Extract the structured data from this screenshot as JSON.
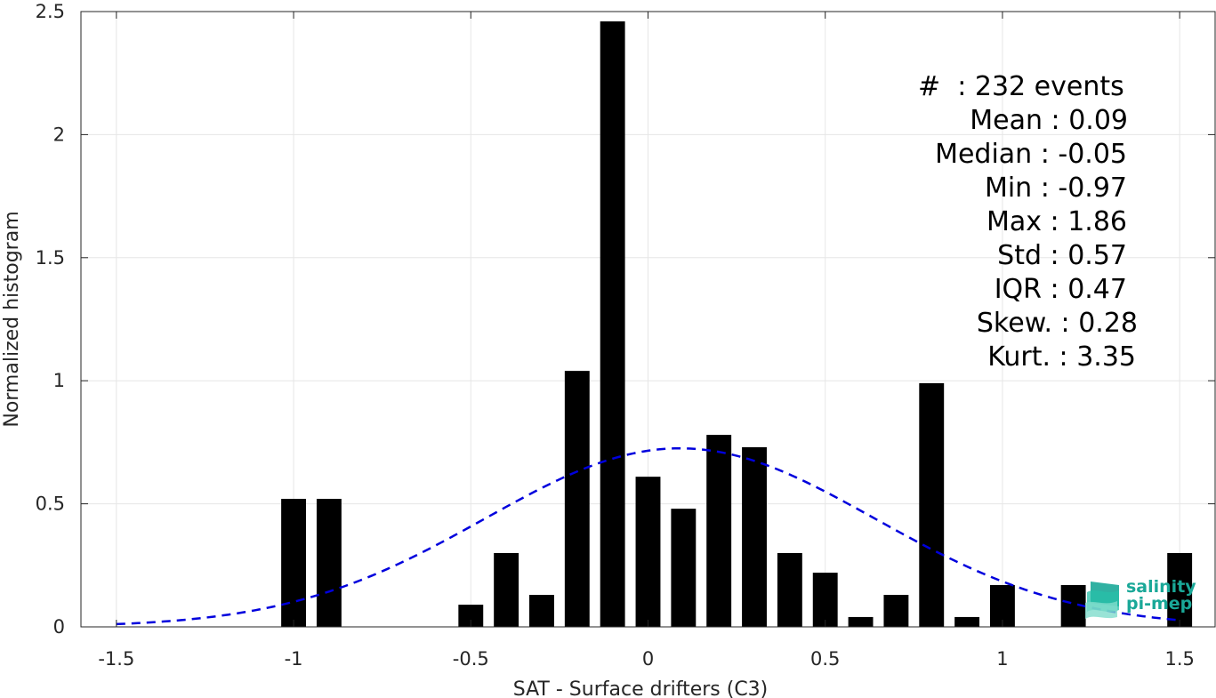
{
  "chart_data": {
    "type": "bar",
    "title": "",
    "xlabel": "SAT - Surface drifters (C3)",
    "ylabel": "Normalized histogram",
    "xlim": [
      -1.6,
      1.6
    ],
    "ylim": [
      0,
      2.5
    ],
    "xticks": [
      -1.5,
      -1,
      -0.5,
      0,
      0.5,
      1,
      1.5
    ],
    "xtick_labels": [
      "-1.5",
      "-1",
      "-0.5",
      "0",
      "0.5",
      "1",
      "1.5"
    ],
    "yticks": [
      0,
      0.5,
      1,
      1.5,
      2,
      2.5
    ],
    "ytick_labels": [
      "0",
      "0.5",
      "1",
      "1.5",
      "2",
      "2.5"
    ],
    "grid": true,
    "bar_width": 0.07,
    "bar_color": "#000000",
    "bars": [
      {
        "x": -1.0,
        "y": 0.52
      },
      {
        "x": -0.9,
        "y": 0.52
      },
      {
        "x": -0.5,
        "y": 0.09
      },
      {
        "x": -0.4,
        "y": 0.3
      },
      {
        "x": -0.3,
        "y": 0.13
      },
      {
        "x": -0.2,
        "y": 1.04
      },
      {
        "x": -0.1,
        "y": 2.46
      },
      {
        "x": 0.0,
        "y": 0.61
      },
      {
        "x": 0.1,
        "y": 0.48
      },
      {
        "x": 0.2,
        "y": 0.78
      },
      {
        "x": 0.3,
        "y": 0.73
      },
      {
        "x": 0.4,
        "y": 0.3
      },
      {
        "x": 0.5,
        "y": 0.22
      },
      {
        "x": 0.6,
        "y": 0.04
      },
      {
        "x": 0.7,
        "y": 0.13
      },
      {
        "x": 0.8,
        "y": 0.99
      },
      {
        "x": 0.9,
        "y": 0.04
      },
      {
        "x": 1.0,
        "y": 0.17
      },
      {
        "x": 1.2,
        "y": 0.17
      },
      {
        "x": 1.5,
        "y": 0.3
      }
    ],
    "fit_curve": {
      "type": "gaussian",
      "mean": 0.09,
      "std": 0.55,
      "x_range": [
        -1.5,
        1.5
      ],
      "color": "#0000dd",
      "style": "dashed"
    }
  },
  "stats": {
    "count": "#  : 232 events",
    "mean": "Mean : 0.09",
    "median": "Median : -0.05",
    "min": "Min : -0.97",
    "max": "Max : 1.86",
    "std": "Std : 0.57",
    "iqr": "IQR : 0.47",
    "skew": "Skew. : 0.28",
    "kurt": "Kurt. : 3.35"
  },
  "logo": {
    "line1": "salinity",
    "line2": "pi-mep",
    "color": "#1aa898"
  }
}
